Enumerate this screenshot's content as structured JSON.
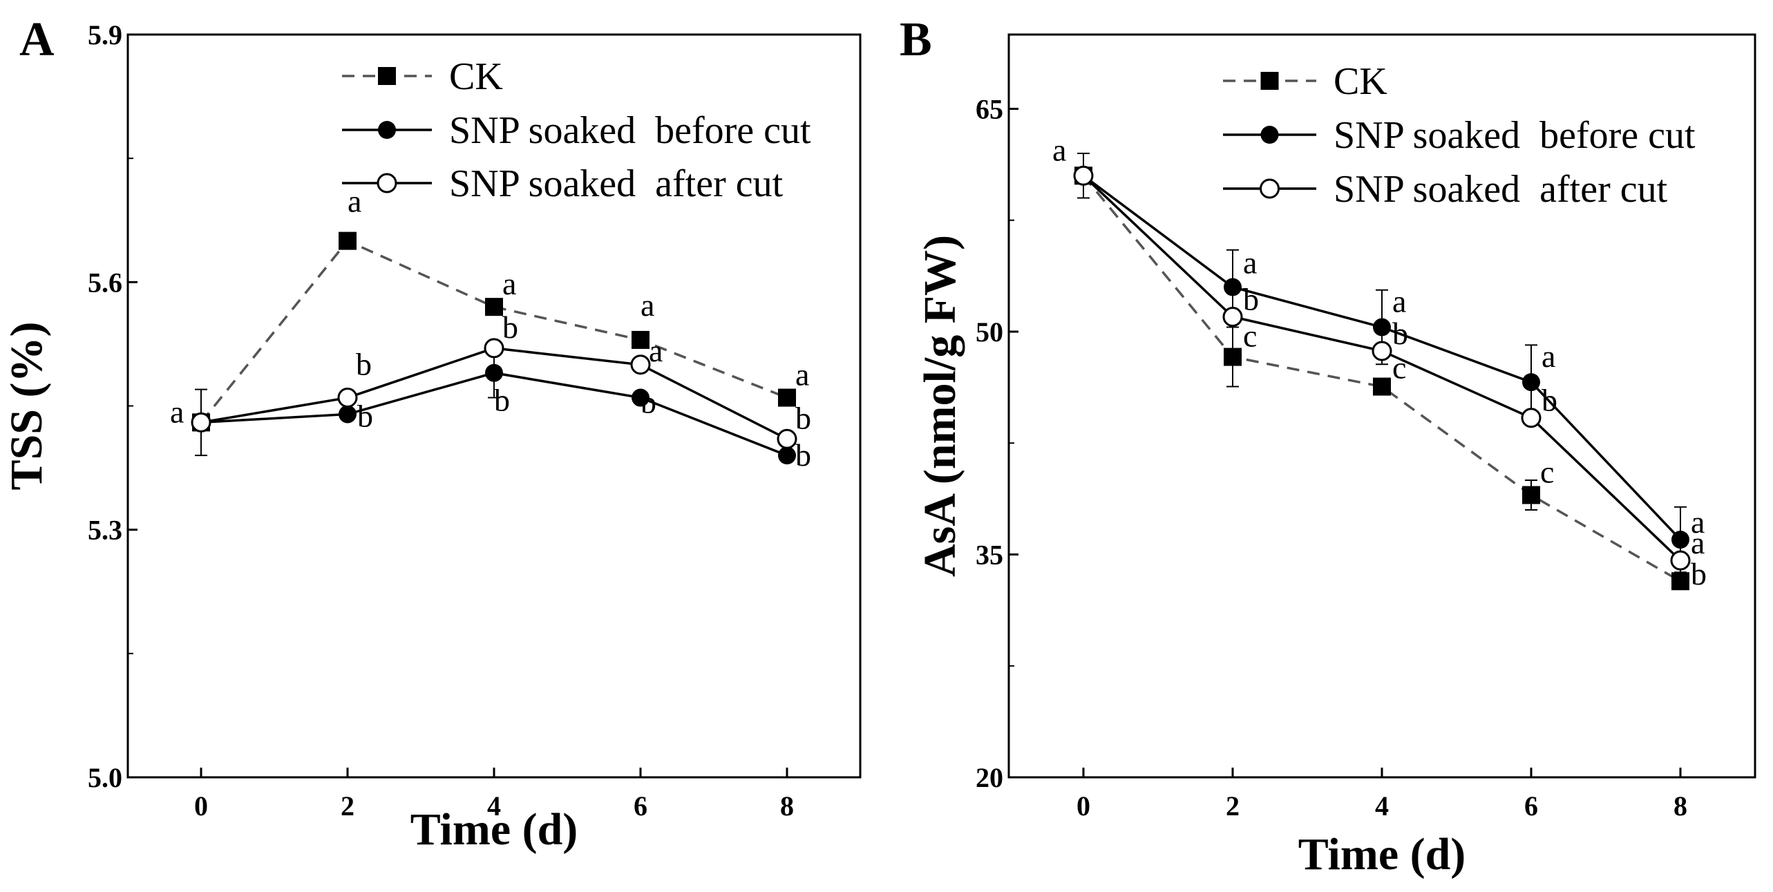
{
  "chart_data": [
    {
      "panel": "A",
      "type": "line",
      "title": "",
      "xlabel": "Time (d)",
      "ylabel": "TSS (%)",
      "x": [
        0,
        2,
        4,
        6,
        8
      ],
      "x_ticks": [
        "0",
        "2",
        "4",
        "6",
        "8"
      ],
      "xlim": [
        -1,
        9
      ],
      "ylim": [
        5.0,
        5.9
      ],
      "y_ticks": [
        "5.0",
        "5.3",
        "5.6",
        "5.9"
      ],
      "grid": false,
      "legend_position": "top-center",
      "series": [
        {
          "name": "CK",
          "style": "dashed",
          "marker": "square",
          "values": [
            5.43,
            5.65,
            5.57,
            5.53,
            5.46
          ],
          "errors": [
            0.04,
            0.0,
            0.0,
            0.0,
            0.0
          ],
          "letters": [
            "a",
            "a",
            "a",
            "a",
            "a"
          ]
        },
        {
          "name": "SNP soaked  before cut",
          "style": "solid",
          "marker": "filled-circle",
          "values": [
            5.43,
            5.44,
            5.49,
            5.46,
            5.39
          ],
          "errors": [
            0.0,
            0.0,
            0.03,
            0.0,
            0.0
          ],
          "letters": [
            "",
            "b",
            "b",
            "b",
            "b"
          ]
        },
        {
          "name": "SNP soaked  after cut",
          "style": "solid",
          "marker": "open-circle",
          "values": [
            5.43,
            5.46,
            5.52,
            5.5,
            5.41
          ],
          "errors": [
            0.0,
            0.0,
            0.0,
            0.0,
            0.0
          ],
          "letters": [
            "",
            "b",
            "b",
            "a",
            "b"
          ]
        }
      ]
    },
    {
      "panel": "B",
      "type": "line",
      "title": "",
      "xlabel": "Time (d)",
      "ylabel": "AsA (nmol/g FW)",
      "x": [
        0,
        2,
        4,
        6,
        8
      ],
      "x_ticks": [
        "0",
        "2",
        "4",
        "6",
        "8"
      ],
      "xlim": [
        -1,
        9
      ],
      "ylim": [
        20,
        70
      ],
      "y_ticks": [
        "20",
        "35",
        "50",
        "65"
      ],
      "grid": false,
      "legend_position": "top-center",
      "series": [
        {
          "name": "CK",
          "style": "dashed",
          "marker": "square",
          "values": [
            60.5,
            48.3,
            46.3,
            39.0,
            33.2
          ],
          "errors": [
            1.5,
            2.0,
            0.0,
            1.0,
            0.0
          ],
          "letters": [
            "a",
            "c",
            "c",
            "c",
            "b"
          ]
        },
        {
          "name": "SNP soaked  before cut",
          "style": "solid",
          "marker": "filled-circle",
          "values": [
            60.5,
            53.0,
            50.3,
            46.6,
            36.0
          ],
          "errors": [
            0.0,
            2.5,
            2.5,
            2.5,
            2.2
          ],
          "letters": [
            "",
            "a",
            "a",
            "a",
            "a"
          ]
        },
        {
          "name": "SNP soaked  after cut",
          "style": "solid",
          "marker": "open-circle",
          "values": [
            60.5,
            51.0,
            48.7,
            44.2,
            34.6
          ],
          "errors": [
            0.0,
            0.0,
            0.0,
            0.0,
            0.0
          ],
          "letters": [
            "",
            "b",
            "b",
            "b",
            "a"
          ]
        }
      ]
    }
  ]
}
